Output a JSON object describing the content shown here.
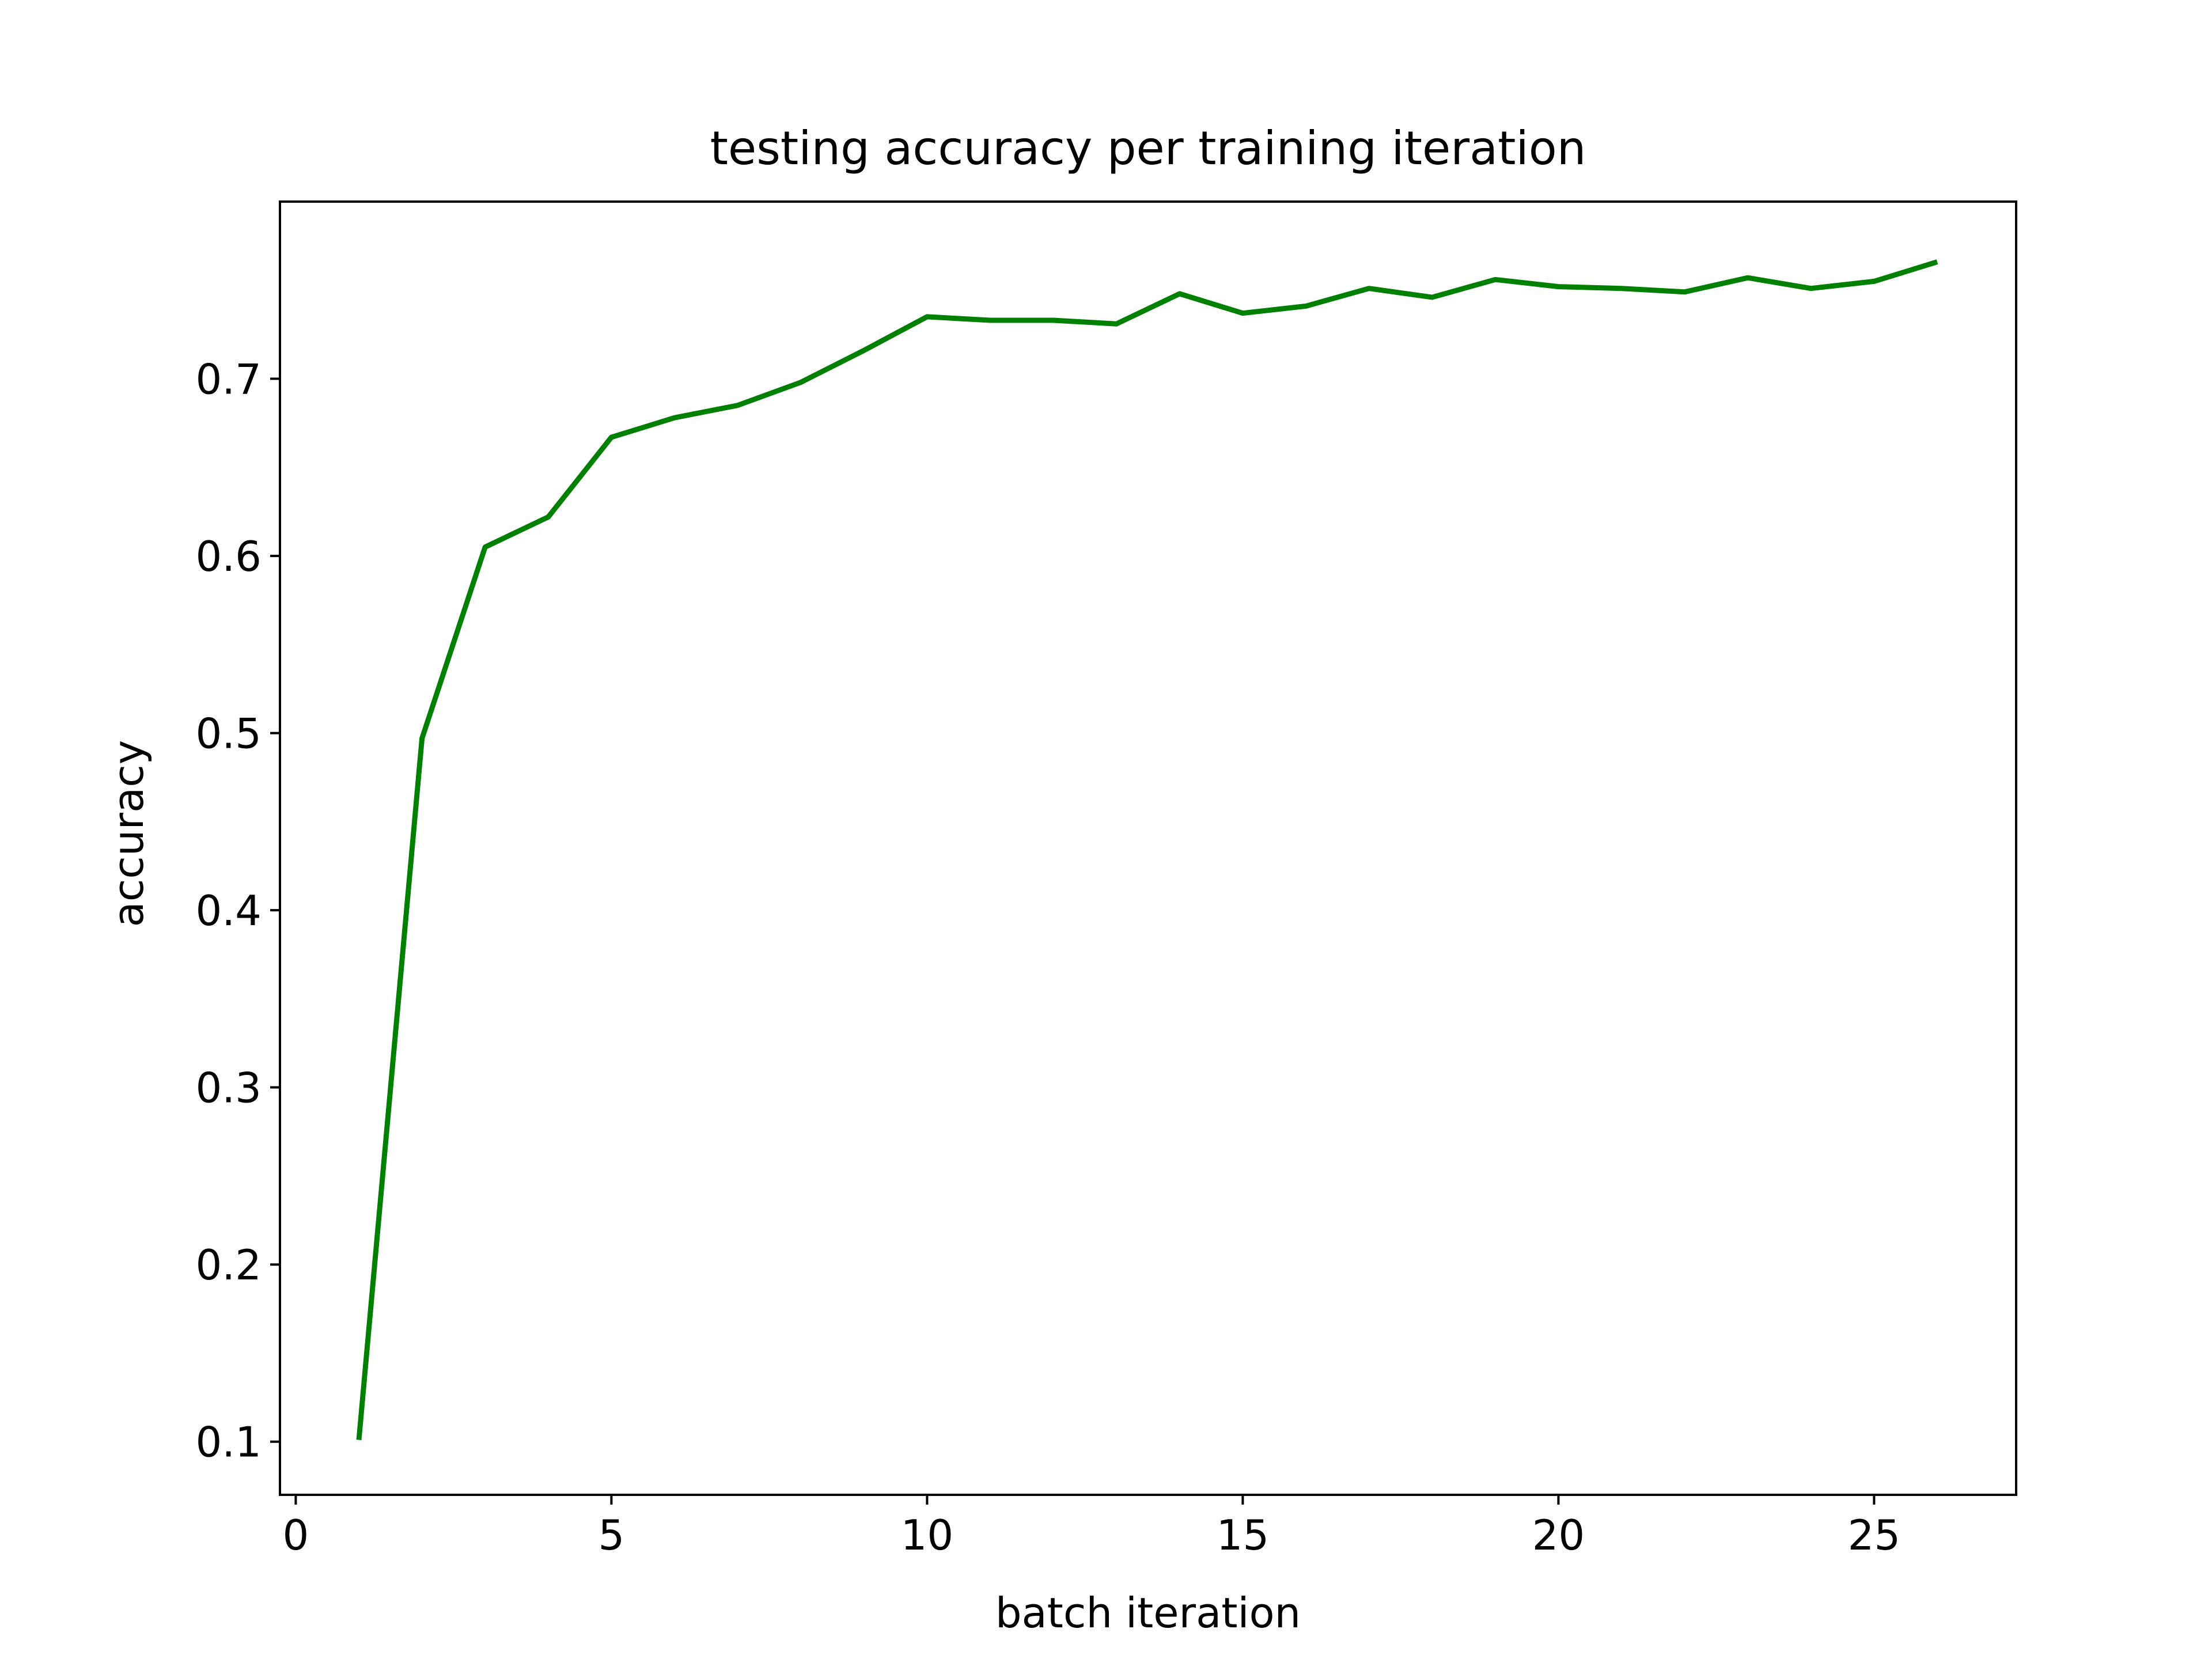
{
  "chart_data": {
    "type": "line",
    "title": "testing accuracy per training iteration",
    "xlabel": "batch iteration",
    "ylabel": "accuracy",
    "xlim": [
      -0.25,
      27.25
    ],
    "ylim": [
      0.07,
      0.8
    ],
    "xticks": [
      0,
      5,
      10,
      15,
      20,
      25
    ],
    "xtick_labels": [
      "0",
      "5",
      "10",
      "15",
      "20",
      "25"
    ],
    "yticks": [
      0.1,
      0.2,
      0.3,
      0.4,
      0.5,
      0.6,
      0.7
    ],
    "ytick_labels": [
      "0.1",
      "0.2",
      "0.3",
      "0.4",
      "0.5",
      "0.6",
      "0.7"
    ],
    "grid": false,
    "legend": false,
    "series": [
      {
        "color": "#008000",
        "x": [
          1,
          2,
          3,
          4,
          5,
          6,
          7,
          8,
          9,
          10,
          11,
          12,
          13,
          14,
          15,
          16,
          17,
          18,
          19,
          20,
          21,
          22,
          23,
          24,
          25,
          26
        ],
        "y": [
          0.101,
          0.497,
          0.605,
          0.622,
          0.667,
          0.678,
          0.685,
          0.698,
          0.716,
          0.735,
          0.733,
          0.733,
          0.731,
          0.748,
          0.737,
          0.741,
          0.751,
          0.746,
          0.756,
          0.752,
          0.751,
          0.749,
          0.757,
          0.751,
          0.755,
          0.766
        ]
      }
    ]
  }
}
